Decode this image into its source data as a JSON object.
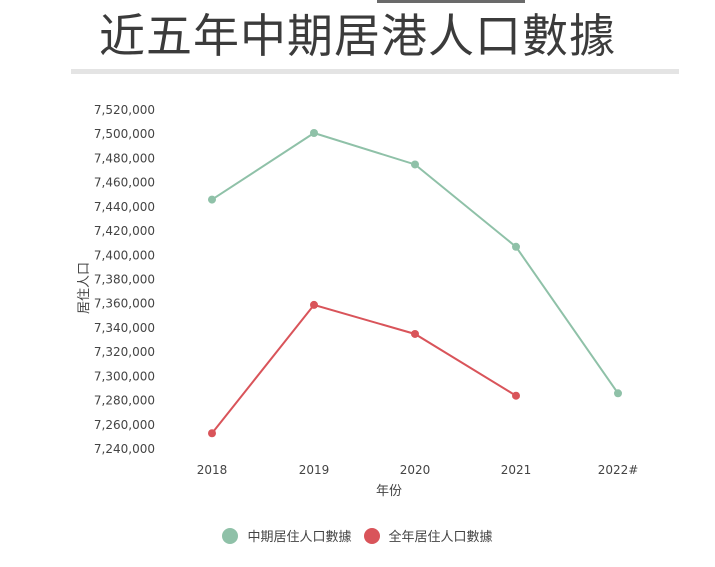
{
  "title": "近五年中期居港人口數據",
  "chart_data": {
    "type": "line",
    "xlabel": "年份",
    "ylabel": "居住人口",
    "categories": [
      "2018",
      "2019",
      "2020",
      "2021",
      "2022#"
    ],
    "ylim": [
      7240000,
      7520000
    ],
    "yticks": [
      7240000,
      7260000,
      7280000,
      7300000,
      7320000,
      7340000,
      7360000,
      7380000,
      7400000,
      7420000,
      7440000,
      7460000,
      7480000,
      7500000,
      7520000
    ],
    "ytick_labels": [
      "7,240,000",
      "7,260,000",
      "7,280,000",
      "7,300,000",
      "7,320,000",
      "7,340,000",
      "7,360,000",
      "7,380,000",
      "7,400,000",
      "7,420,000",
      "7,440,000",
      "7,460,000",
      "7,480,000",
      "7,500,000",
      "7,520,000"
    ],
    "grid": false,
    "legend": "bottom",
    "series": [
      {
        "name": "中期居住人口數據",
        "color": "#8fc1a8",
        "values": [
          7446000,
          7501000,
          7475000,
          7407000,
          7286000
        ]
      },
      {
        "name": "全年居住人口數據",
        "color": "#d9545a",
        "values": [
          7253000,
          7359000,
          7335000,
          7284000,
          null
        ]
      }
    ]
  }
}
